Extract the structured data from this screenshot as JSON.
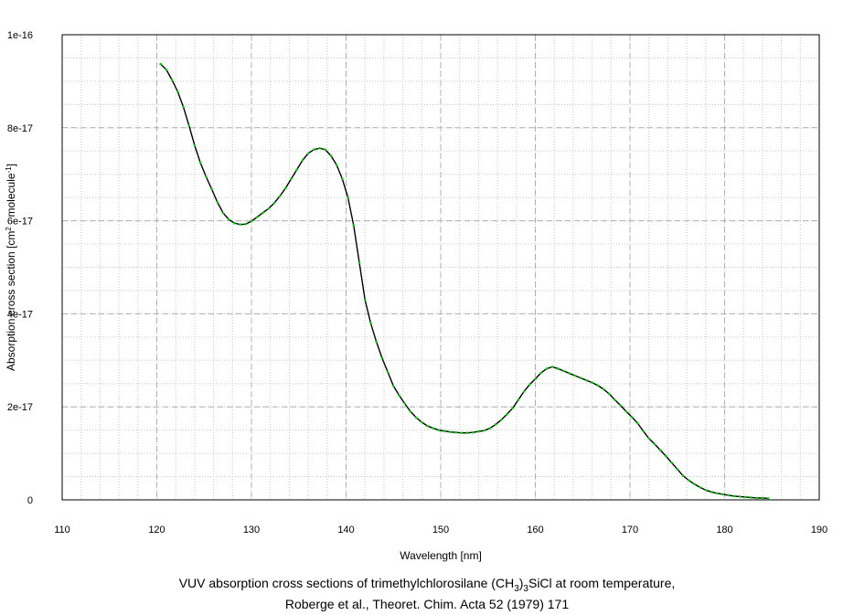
{
  "chart_data": {
    "type": "line",
    "xlabel": "Wavelength [nm]",
    "ylabel": {
      "prefix": "Absorption cross section [cm",
      "sup1": "2",
      "middle": " · molecule",
      "sup2": "-1",
      "suffix": "]"
    },
    "xlim": [
      110,
      190
    ],
    "ylim": [
      0,
      1e-16
    ],
    "xticks": [
      110,
      120,
      130,
      140,
      150,
      160,
      170,
      180,
      190
    ],
    "yticks": [
      {
        "value": 0,
        "label": "0"
      },
      {
        "value": 2e-17,
        "label": "2e-17"
      },
      {
        "value": 4e-17,
        "label": "4e-17"
      },
      {
        "value": 6e-17,
        "label": "6e-17"
      },
      {
        "value": 8e-17,
        "label": "8e-17"
      },
      {
        "value": 1e-16,
        "label": "1e-16"
      }
    ],
    "grid": true,
    "line_color": "#000000",
    "marker_color": "#00cc00",
    "series": [
      {
        "x": [
          120.4,
          121.0,
          121.6,
          122.2,
          122.8,
          123.4,
          124.0,
          124.6,
          125.2,
          125.8,
          126.4,
          127.0,
          127.6,
          128.2,
          128.8,
          129.4,
          130.0,
          130.6,
          131.2,
          131.8,
          132.4,
          133.0,
          133.6,
          134.2,
          134.8,
          135.4,
          136.0,
          136.6,
          137.2,
          137.8,
          138.4,
          139.0,
          139.6,
          140.2,
          140.8,
          141.4,
          142.0,
          142.6,
          143.2,
          143.8,
          144.4,
          145.0,
          145.6,
          146.2,
          146.8,
          147.4,
          148.0,
          148.6,
          149.2,
          149.8,
          150.4,
          151.0,
          151.6,
          152.2,
          152.8,
          153.4,
          154.0,
          154.6,
          155.2,
          155.8,
          156.4,
          157.0,
          157.6,
          158.2,
          158.8,
          159.4,
          160.0,
          160.6,
          161.2,
          161.8,
          162.4,
          163.0,
          163.6,
          164.2,
          164.8,
          165.4,
          166.0,
          166.6,
          167.2,
          167.8,
          168.4,
          169.0,
          169.6,
          170.2,
          170.8,
          171.4,
          172.0,
          172.6,
          173.2,
          173.8,
          174.4,
          175.0,
          175.6,
          176.2,
          176.8,
          177.4,
          178.0,
          178.6,
          179.2,
          179.8,
          180.4,
          181.0,
          181.6,
          182.2,
          182.8,
          183.4,
          184.0,
          184.6
        ],
        "y": [
          9.37e-17,
          9.25e-17,
          9.03e-17,
          8.78e-17,
          8.45e-17,
          8.05e-17,
          7.62e-17,
          7.25e-17,
          6.95e-17,
          6.68e-17,
          6.4e-17,
          6.17e-17,
          6.03e-17,
          5.95e-17,
          5.92e-17,
          5.93e-17,
          5.99e-17,
          6.08e-17,
          6.17e-17,
          6.26e-17,
          6.38e-17,
          6.53e-17,
          6.7e-17,
          6.9e-17,
          7.1e-17,
          7.3e-17,
          7.45e-17,
          7.53e-17,
          7.56e-17,
          7.53e-17,
          7.4e-17,
          7.2e-17,
          6.9e-17,
          6.5e-17,
          5.9e-17,
          5.1e-17,
          4.3e-17,
          3.8e-17,
          3.4e-17,
          3.05e-17,
          2.75e-17,
          2.45e-17,
          2.25e-17,
          2.07e-17,
          1.9e-17,
          1.77e-17,
          1.67e-17,
          1.59e-17,
          1.54e-17,
          1.5e-17,
          1.48e-17,
          1.46e-17,
          1.45e-17,
          1.44e-17,
          1.44e-17,
          1.45e-17,
          1.47e-17,
          1.49e-17,
          1.54e-17,
          1.62e-17,
          1.72e-17,
          1.84e-17,
          1.97e-17,
          2.15e-17,
          2.33e-17,
          2.48e-17,
          2.6e-17,
          2.73e-17,
          2.82e-17,
          2.86e-17,
          2.82e-17,
          2.77e-17,
          2.72e-17,
          2.67e-17,
          2.62e-17,
          2.57e-17,
          2.52e-17,
          2.46e-17,
          2.38e-17,
          2.28e-17,
          2.15e-17,
          2.03e-17,
          1.9e-17,
          1.78e-17,
          1.65e-17,
          1.48e-17,
          1.32e-17,
          1.2e-17,
          1.07e-17,
          9.4e-18,
          8e-18,
          6.6e-18,
          5.2e-18,
          4.2e-18,
          3.4e-18,
          2.7e-18,
          2.1e-18,
          1.7e-18,
          1.4e-18,
          1.2e-18,
          1e-18,
          8e-19,
          7e-19,
          6e-19,
          5e-19,
          4e-19,
          4e-19,
          3e-19
        ]
      }
    ]
  },
  "caption": {
    "line1_prefix": "VUV absorption cross sections of trimethylchlorosilane (CH",
    "line1_sub1": "3",
    "line1_mid": ")",
    "line1_sub2": "3",
    "line1_suffix": "SiCl at room temperature,",
    "line2": "Roberge et al., Theoret. Chim. Acta 52 (1979) 171"
  }
}
